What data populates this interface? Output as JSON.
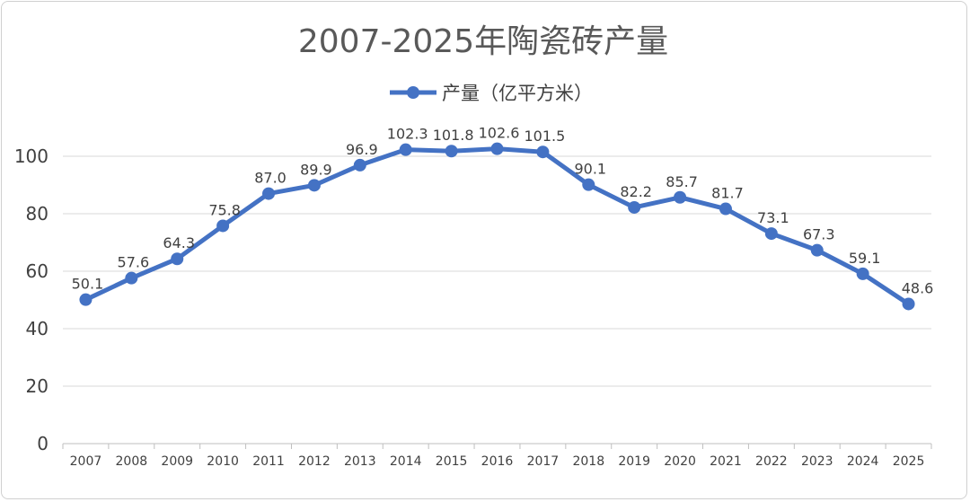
{
  "chart_data": {
    "type": "line",
    "title": "2007-2025年陶瓷砖产量",
    "xlabel": "",
    "ylabel": "",
    "categories": [
      "2007",
      "2008",
      "2009",
      "2010",
      "2011",
      "2012",
      "2013",
      "2014",
      "2015",
      "2016",
      "2017",
      "2018",
      "2019",
      "2020",
      "2021",
      "2022",
      "2023",
      "2024",
      "2025"
    ],
    "series": [
      {
        "name": "产量（亿平方米）",
        "color": "#4472C4",
        "values": [
          50.1,
          57.6,
          64.3,
          75.8,
          87.0,
          89.9,
          96.9,
          102.3,
          101.8,
          102.6,
          101.5,
          90.1,
          82.2,
          85.7,
          81.7,
          73.1,
          67.3,
          59.1,
          48.6
        ],
        "labels": [
          "50.1",
          "57.6",
          "64.3",
          "75.8",
          "87.0",
          "89.9",
          "96.9",
          "102.3",
          "101.8",
          "102.6",
          "101.5",
          "90.1",
          "82.2",
          "85.7",
          "81.7",
          "73.1",
          "67.3",
          "59.1",
          "48.6"
        ]
      }
    ],
    "ylim": [
      0,
      100
    ],
    "yticks": [
      "0",
      "20",
      "40",
      "60",
      "80",
      "100"
    ],
    "grid": true,
    "legend": "top-center"
  }
}
